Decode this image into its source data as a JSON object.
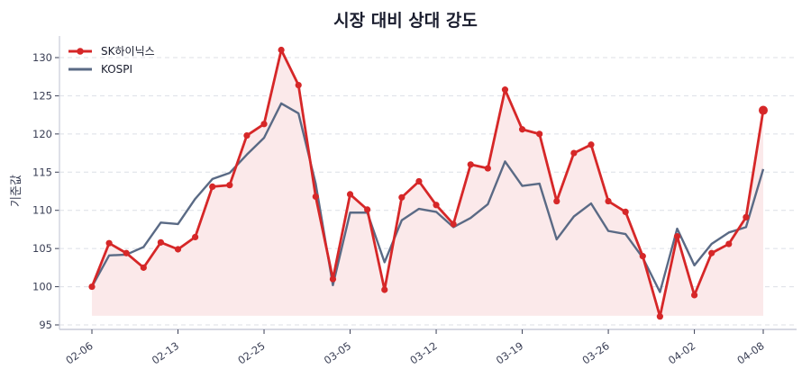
{
  "chart_data": {
    "type": "line",
    "title": "시장 대비 상대 강도",
    "xlabel": "",
    "ylabel": "기준값",
    "ylim": [
      94.5,
      132.5
    ],
    "yticks": [
      95,
      100,
      105,
      110,
      115,
      120,
      125,
      130
    ],
    "xtick_labels": [
      "02-06",
      "02-13",
      "02-25",
      "03-05",
      "03-12",
      "03-19",
      "03-26",
      "04-02",
      "04-08"
    ],
    "xtick_indices": [
      0,
      5,
      10,
      15,
      20,
      25,
      30,
      35,
      39
    ],
    "grid": "horizontal dashed",
    "legend_position": "upper left",
    "series": [
      {
        "name": "SK하이닉스",
        "color": "#d62728",
        "marker": "circle",
        "fill": true,
        "values": [
          100.0,
          105.7,
          104.4,
          102.5,
          105.8,
          104.9,
          106.5,
          113.1,
          113.3,
          119.8,
          121.3,
          131.0,
          126.4,
          111.8,
          101.0,
          112.1,
          110.1,
          99.6,
          111.7,
          113.8,
          110.7,
          108.2,
          116.0,
          115.5,
          125.8,
          120.6,
          120.0,
          111.2,
          117.5,
          118.6,
          111.2,
          109.8,
          104.0,
          96.1,
          106.6,
          98.9,
          104.4,
          105.6,
          109.1,
          123.1
        ]
      },
      {
        "name": "KOSPI",
        "color": "#5a6a85",
        "marker": "none",
        "fill": false,
        "values": [
          100.0,
          104.1,
          104.2,
          105.2,
          108.4,
          108.2,
          111.5,
          114.1,
          114.9,
          117.3,
          119.5,
          124.0,
          122.7,
          113.5,
          100.2,
          109.7,
          109.7,
          103.2,
          108.7,
          110.2,
          109.8,
          107.8,
          109.0,
          110.8,
          116.4,
          113.2,
          113.5,
          106.2,
          109.2,
          110.9,
          107.3,
          106.9,
          103.8,
          99.3,
          107.6,
          102.8,
          105.6,
          107.1,
          107.8,
          115.4
        ]
      }
    ]
  },
  "colors": {
    "fill": "#fbe9ea",
    "grid": "#dcdfe6",
    "axis": "#c9ccd8"
  }
}
